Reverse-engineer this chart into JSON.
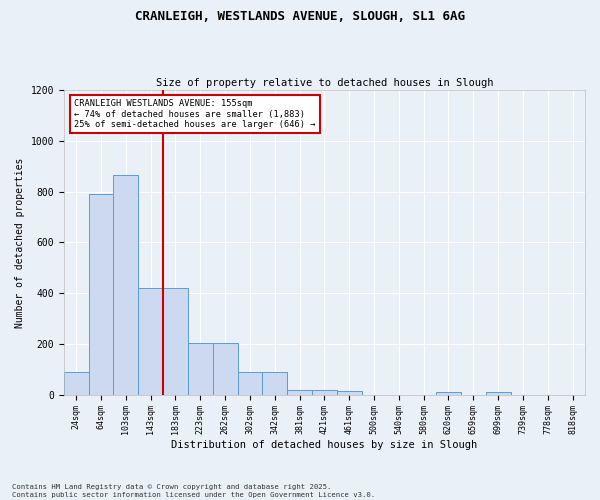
{
  "title_line1": "CRANLEIGH, WESTLANDS AVENUE, SLOUGH, SL1 6AG",
  "title_line2": "Size of property relative to detached houses in Slough",
  "xlabel": "Distribution of detached houses by size in Slough",
  "ylabel": "Number of detached properties",
  "categories": [
    "24sqm",
    "64sqm",
    "103sqm",
    "143sqm",
    "183sqm",
    "223sqm",
    "262sqm",
    "302sqm",
    "342sqm",
    "381sqm",
    "421sqm",
    "461sqm",
    "500sqm",
    "540sqm",
    "580sqm",
    "620sqm",
    "659sqm",
    "699sqm",
    "739sqm",
    "778sqm",
    "818sqm"
  ],
  "values": [
    90,
    790,
    865,
    420,
    420,
    205,
    205,
    90,
    90,
    20,
    20,
    15,
    0,
    0,
    0,
    10,
    0,
    10,
    0,
    0,
    0
  ],
  "bar_color": "#ccd9f0",
  "bar_edge_color": "#5b9bd5",
  "red_line_x": 3.5,
  "annotation_line1": "CRANLEIGH WESTLANDS AVENUE: 155sqm",
  "annotation_line2": "← 74% of detached houses are smaller (1,883)",
  "annotation_line3": "25% of semi-detached houses are larger (646) →",
  "annotation_box_color": "#ffffff",
  "annotation_box_edge": "#cc0000",
  "vline_color": "#cc0000",
  "background_color": "#eaf0f8",
  "grid_color": "#ffffff",
  "footer_line1": "Contains HM Land Registry data © Crown copyright and database right 2025.",
  "footer_line2": "Contains public sector information licensed under the Open Government Licence v3.0.",
  "ylim": [
    0,
    1200
  ],
  "yticks": [
    0,
    200,
    400,
    600,
    800,
    1000,
    1200
  ]
}
